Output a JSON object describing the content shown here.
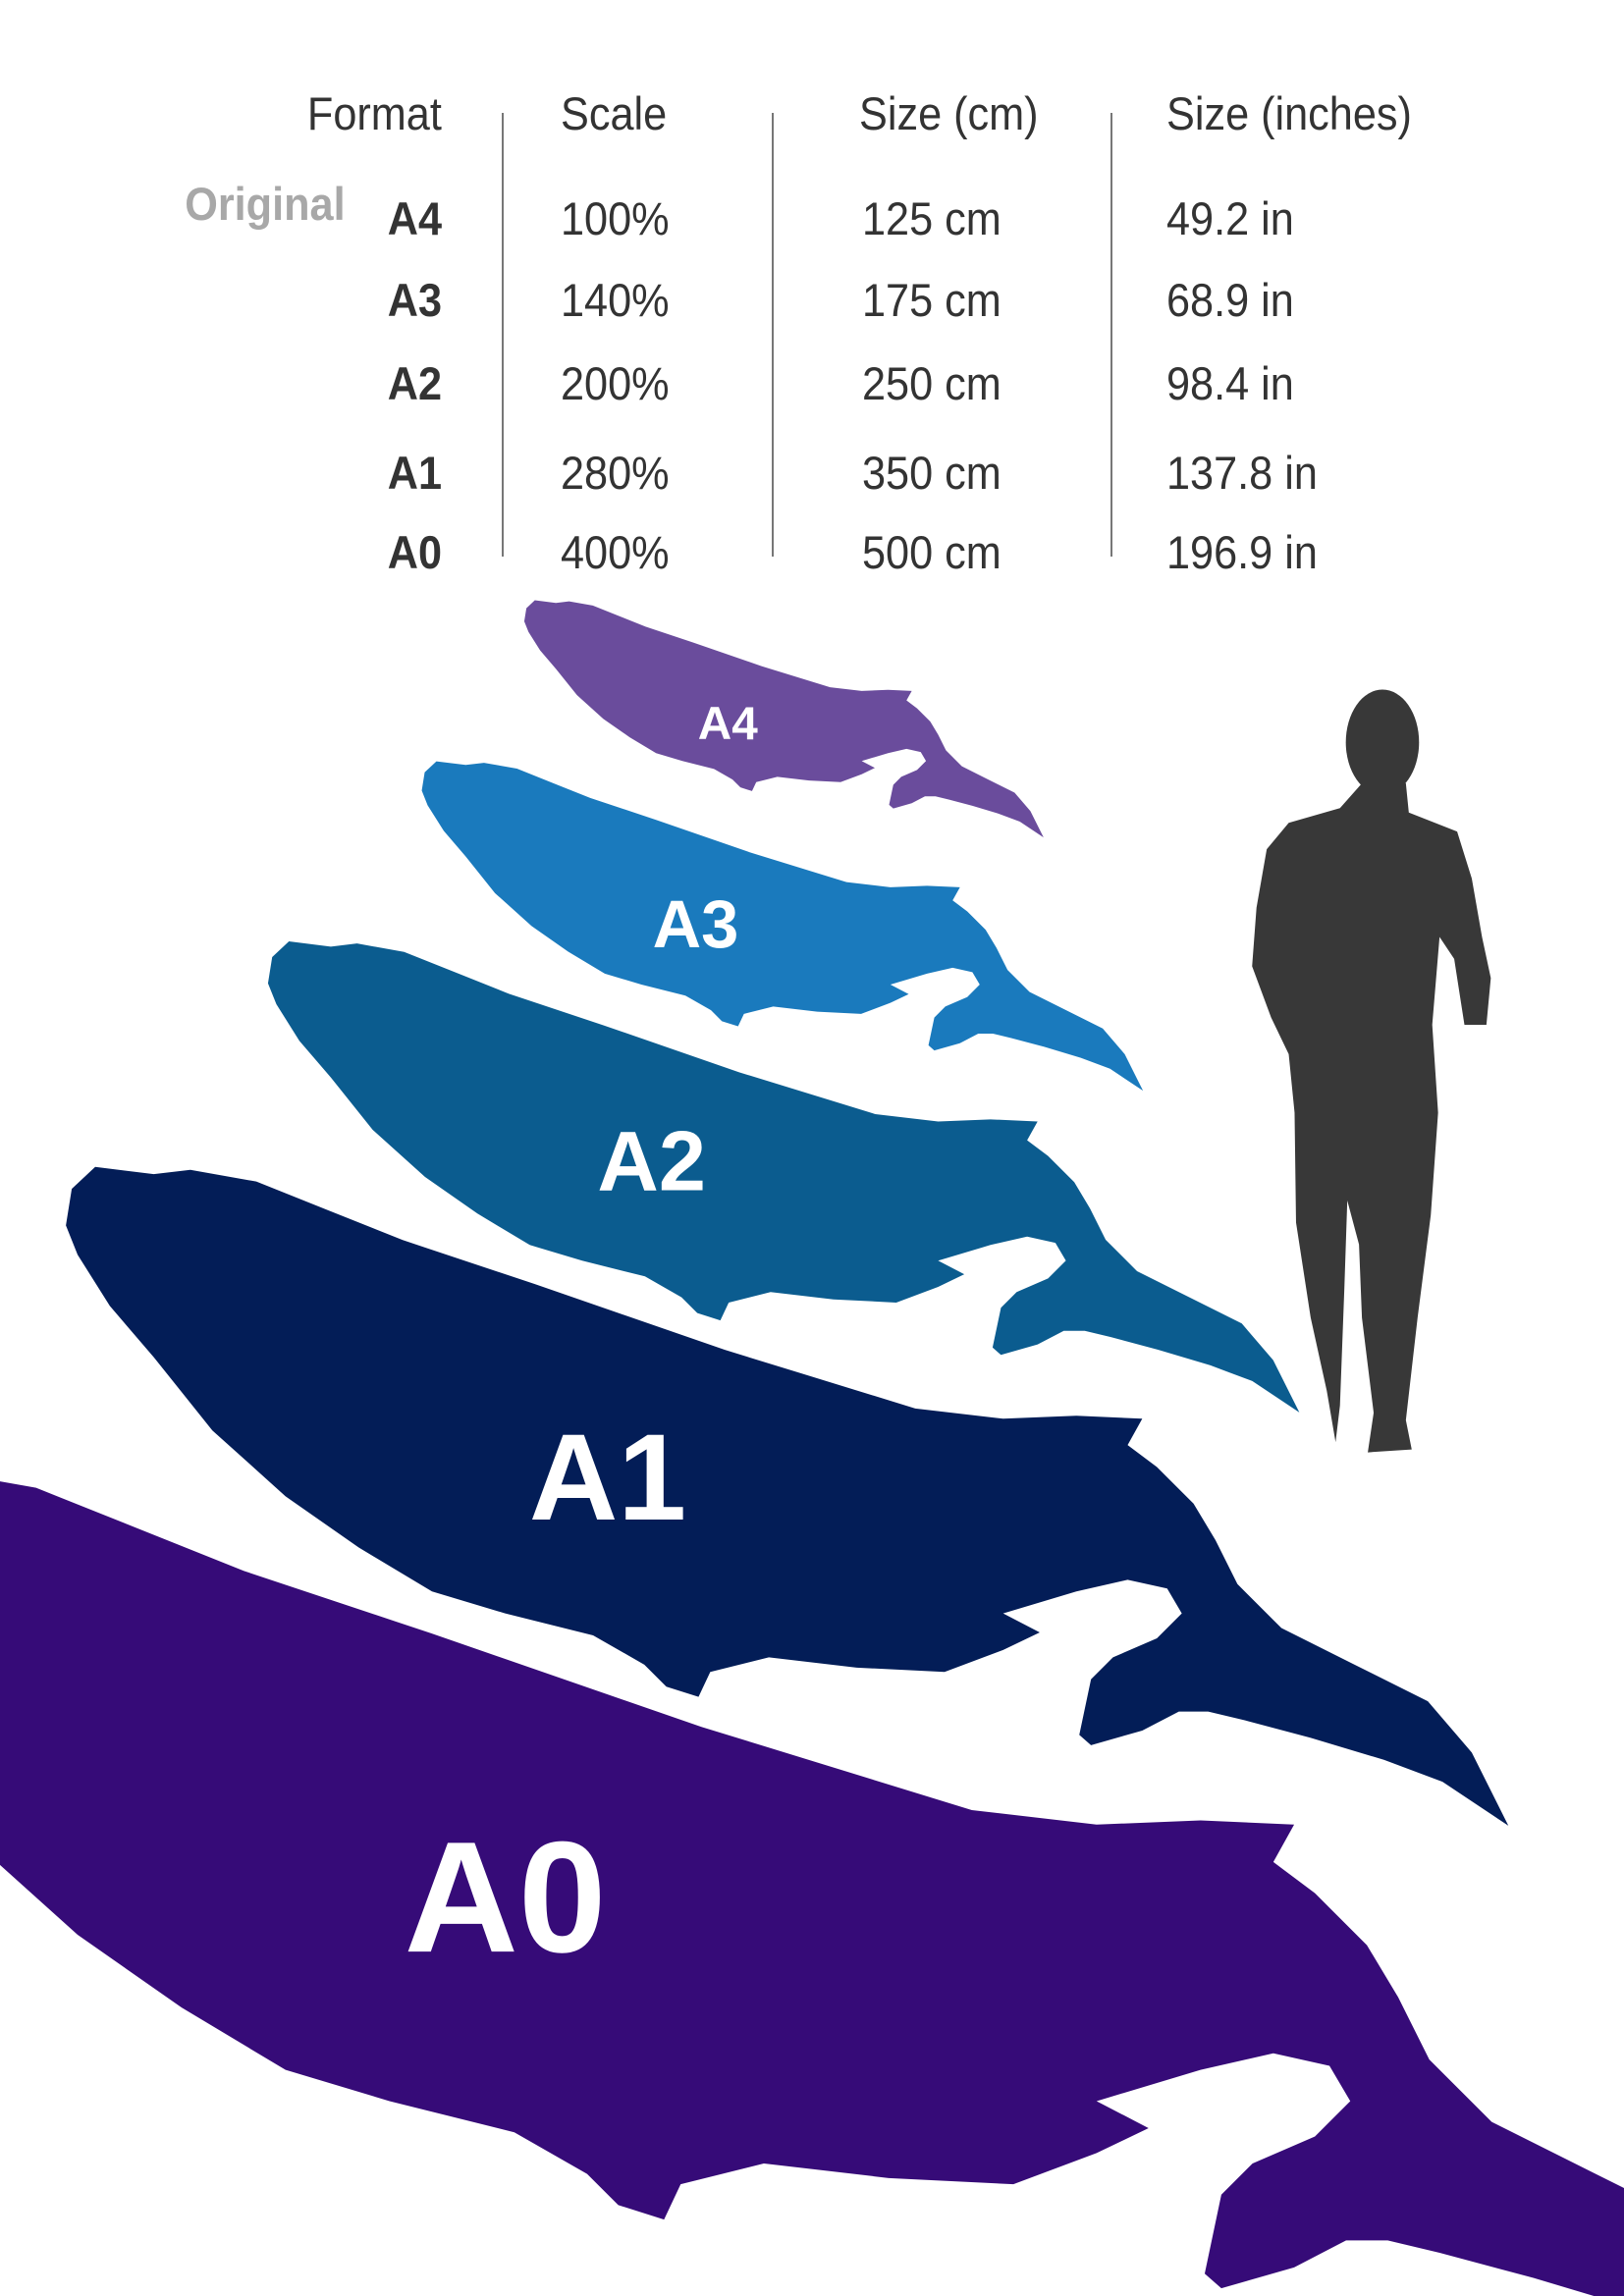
{
  "table": {
    "headers": [
      "Format",
      "Scale",
      "Size (cm)",
      "Size (inches)"
    ],
    "original_label": "Original",
    "rows": [
      {
        "format": "A4",
        "scale": "100%",
        "cm": "125 cm",
        "inches": "49.2 in"
      },
      {
        "format": "A3",
        "scale": "140%",
        "cm": "175 cm",
        "inches": "68.9 in"
      },
      {
        "format": "A2",
        "scale": "200%",
        "cm": "250 cm",
        "inches": "98.4 in"
      },
      {
        "format": "A1",
        "scale": "280%",
        "cm": "350 cm",
        "inches": "137.8 in"
      },
      {
        "format": "A0",
        "scale": "400%",
        "cm": "500 cm",
        "inches": "196.9 in"
      }
    ]
  },
  "whales": [
    {
      "label": "A4",
      "color": "#6a4c9c"
    },
    {
      "label": "A3",
      "color": "#1a7abd"
    },
    {
      "label": "A2",
      "color": "#0b5c8f"
    },
    {
      "label": "A1",
      "color": "#031d57"
    },
    {
      "label": "A0",
      "color": "#360b78"
    }
  ],
  "human_color": "#383838"
}
